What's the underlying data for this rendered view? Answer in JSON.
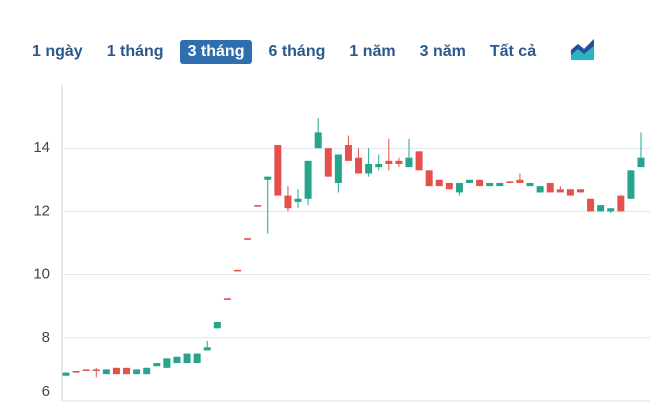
{
  "tabs": [
    "1 ngày",
    "1 tháng",
    "3 tháng",
    "6 tháng",
    "1 năm",
    "3 năm",
    "Tất cả"
  ],
  "active_tab": 2,
  "chart_data": {
    "type": "candlestick",
    "up_color": "#26a48c",
    "down_color": "#e5504d",
    "grid": true,
    "ylim": [
      6,
      16
    ],
    "yticks": [
      6,
      8,
      10,
      12,
      14
    ],
    "open": [
      6.8,
      6.95,
      7.0,
      7.0,
      6.85,
      7.05,
      7.05,
      6.85,
      6.85,
      7.1,
      7.05,
      7.2,
      7.2,
      7.2,
      7.6,
      8.3,
      9.25,
      10.15,
      11.15,
      12.2,
      13.0,
      14.1,
      12.5,
      12.3,
      12.4,
      14.0,
      14.0,
      12.9,
      14.1,
      13.7,
      13.2,
      13.4,
      13.6,
      13.6,
      13.4,
      13.9,
      13.3,
      13.0,
      12.9,
      12.6,
      12.9,
      13.0,
      12.8,
      12.8,
      12.95,
      13.0,
      12.8,
      12.6,
      12.9,
      12.7,
      12.7,
      12.7,
      12.4,
      12.0,
      12.0,
      12.5,
      12.4,
      13.4
    ],
    "high": [
      6.9,
      6.95,
      7.0,
      7.05,
      7.0,
      7.05,
      7.05,
      7.0,
      7.05,
      7.2,
      7.35,
      7.4,
      7.5,
      7.5,
      7.9,
      8.5,
      9.25,
      10.15,
      11.15,
      12.2,
      13.1,
      14.1,
      12.8,
      12.7,
      13.6,
      14.95,
      14.0,
      13.8,
      14.4,
      14.0,
      14.0,
      13.8,
      14.3,
      13.7,
      14.3,
      13.9,
      13.3,
      13.0,
      12.9,
      12.9,
      13.0,
      13.0,
      12.9,
      12.9,
      12.95,
      13.2,
      12.9,
      12.8,
      12.9,
      12.8,
      12.7,
      12.7,
      12.4,
      12.2,
      12.1,
      12.5,
      13.3,
      14.5
    ],
    "low": [
      6.8,
      6.9,
      6.95,
      6.75,
      6.85,
      6.85,
      6.85,
      6.85,
      6.85,
      7.1,
      7.05,
      7.2,
      7.2,
      7.2,
      7.6,
      8.3,
      9.2,
      10.1,
      11.1,
      12.15,
      11.3,
      12.5,
      12.0,
      12.1,
      12.2,
      14.0,
      13.1,
      12.6,
      13.6,
      13.2,
      13.1,
      13.3,
      13.3,
      13.4,
      13.4,
      13.3,
      12.8,
      12.8,
      12.7,
      12.5,
      12.9,
      12.8,
      12.8,
      12.8,
      12.9,
      12.9,
      12.8,
      12.6,
      12.6,
      12.6,
      12.5,
      12.6,
      12.0,
      12.0,
      11.95,
      12.0,
      12.4,
      13.4
    ],
    "close": [
      6.9,
      6.9,
      6.95,
      6.95,
      7.0,
      6.85,
      6.85,
      7.0,
      7.05,
      7.2,
      7.35,
      7.4,
      7.5,
      7.5,
      7.7,
      8.5,
      9.2,
      10.1,
      11.1,
      12.15,
      13.1,
      12.5,
      12.1,
      12.4,
      13.6,
      14.5,
      13.1,
      13.8,
      13.6,
      13.2,
      13.5,
      13.5,
      13.5,
      13.5,
      13.7,
      13.3,
      12.8,
      12.8,
      12.7,
      12.9,
      13.0,
      12.8,
      12.9,
      12.9,
      12.9,
      12.9,
      12.9,
      12.8,
      12.6,
      12.6,
      12.5,
      12.6,
      12.0,
      12.2,
      12.1,
      12.0,
      13.3,
      13.7
    ]
  }
}
